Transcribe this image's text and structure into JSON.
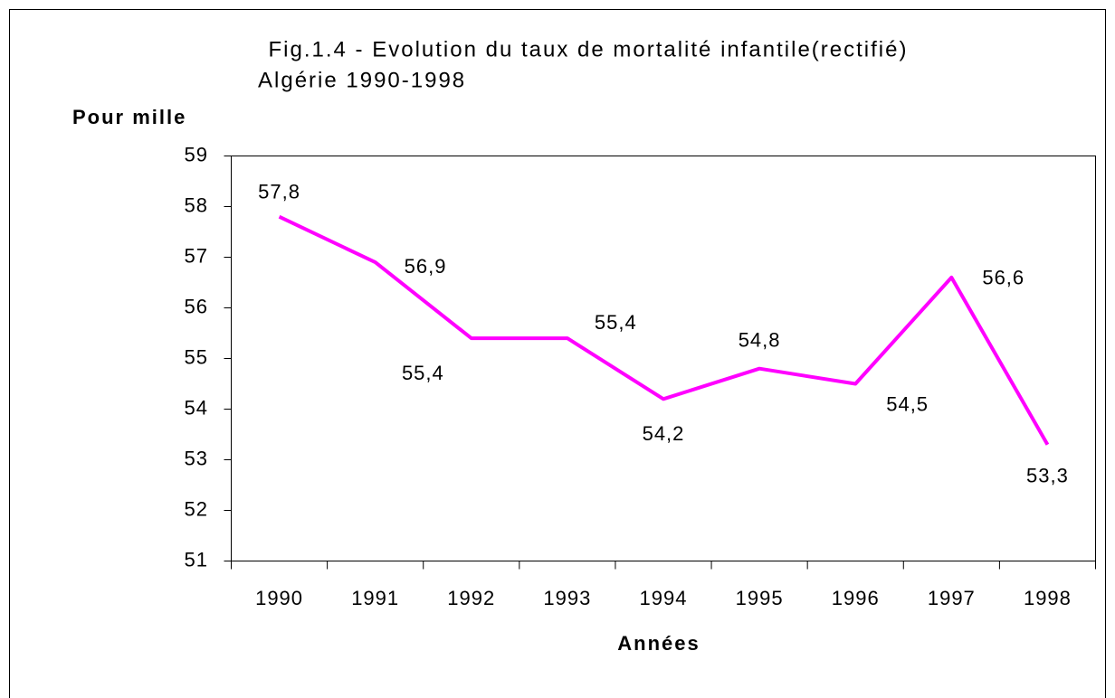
{
  "chart_data": {
    "type": "line",
    "title": "Fig.1.4 - Evolution du taux de mortalité infantile(rectifié)",
    "subtitle": "Algérie 1990-1998",
    "y_label": "Pour mille",
    "x_label": "Années",
    "categories": [
      "1990",
      "1991",
      "1992",
      "1993",
      "1994",
      "1995",
      "1996",
      "1997",
      "1998"
    ],
    "series": [
      {
        "name": "Taux de mortalité infantile",
        "color": "#ff00ff",
        "values": [
          57.8,
          56.9,
          55.4,
          55.4,
          54.2,
          54.8,
          54.5,
          56.6,
          53.3
        ],
        "value_labels": [
          "57,8",
          "56,9",
          "55,4",
          "55,4",
          "54,2",
          "54,8",
          "54,5",
          "56,6",
          "53,3"
        ]
      }
    ],
    "ylim": [
      51,
      59
    ],
    "yticks": [
      51,
      52,
      53,
      54,
      55,
      56,
      57,
      58,
      59
    ],
    "grid": false,
    "legend": false
  }
}
